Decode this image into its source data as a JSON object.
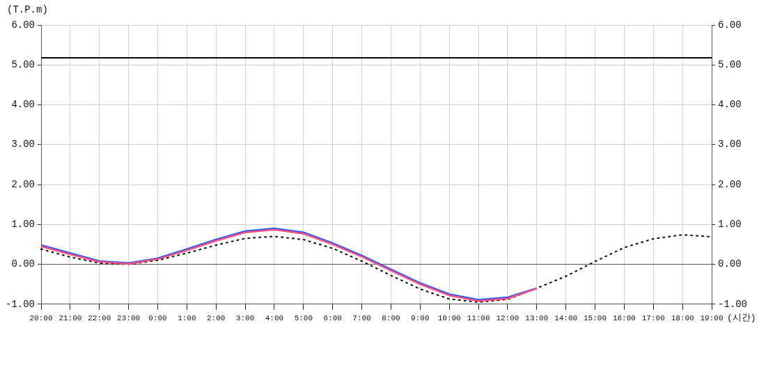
{
  "chart_data": {
    "type": "line",
    "xlabel": "(시간)",
    "ylabel": "(T.P.m)",
    "categories": [
      "20:00",
      "21:00",
      "22:00",
      "23:00",
      "0:00",
      "1:00",
      "2:00",
      "3:00",
      "4:00",
      "5:00",
      "6:00",
      "7:00",
      "8:00",
      "9:00",
      "10:00",
      "11:00",
      "12:00",
      "13:00",
      "14:00",
      "15:00",
      "16:00",
      "17:00",
      "18:00",
      "19:00"
    ],
    "series": [
      {
        "color": "#ff4f7b",
        "line_style": "solid",
        "values": [
          0.45,
          0.25,
          0.06,
          0.01,
          0.13,
          0.35,
          0.59,
          0.8,
          0.87,
          0.77,
          0.5,
          0.19,
          -0.16,
          -0.5,
          -0.78,
          -0.92,
          -0.86,
          -0.61,
          null,
          null,
          null,
          null,
          null,
          null
        ]
      },
      {
        "color": "#1f5bff",
        "line_style": "solid",
        "values": [
          0.48,
          0.28,
          0.08,
          0.03,
          0.15,
          0.38,
          0.62,
          0.83,
          0.9,
          0.8,
          0.53,
          0.22,
          -0.13,
          -0.47,
          -0.75,
          -0.89,
          -0.83,
          -0.6,
          null,
          null,
          null,
          null,
          null,
          null
        ]
      },
      {
        "color": "#000000",
        "line_style": "dotted",
        "values": [
          0.38,
          0.18,
          0.03,
          0.0,
          0.1,
          0.28,
          0.48,
          0.65,
          0.7,
          0.62,
          0.4,
          0.08,
          -0.28,
          -0.62,
          -0.87,
          -0.95,
          -0.88,
          -0.6,
          -0.3,
          0.07,
          0.42,
          0.64,
          0.74,
          0.69
        ]
      }
    ],
    "ylim": [
      -1,
      6
    ],
    "yticks": [
      {
        "value": -1,
        "label": "-1.00"
      },
      {
        "value": 0,
        "label": "0.00"
      },
      {
        "value": 1,
        "label": "1.00"
      },
      {
        "value": 2,
        "label": "2.00"
      },
      {
        "value": 3,
        "label": "3.00"
      },
      {
        "value": 4,
        "label": "4.00"
      },
      {
        "value": 5,
        "label": "5.00"
      },
      {
        "value": 6,
        "label": "6.00"
      }
    ],
    "y2lim": [
      -1,
      6
    ],
    "y2ticks": [
      {
        "value": -1,
        "label": "-1.00"
      },
      {
        "value": 0,
        "label": "0.00"
      },
      {
        "value": 1,
        "label": "1.00"
      },
      {
        "value": 2,
        "label": "2.00"
      },
      {
        "value": 3,
        "label": "3.00"
      },
      {
        "value": 4,
        "label": "4.00"
      },
      {
        "value": 5,
        "label": "5.00"
      },
      {
        "value": 6,
        "label": "6.00"
      }
    ],
    "ref_lines": [
      {
        "axis": "y",
        "value": 5.18,
        "color": "#000000"
      },
      {
        "axis": "y",
        "value": 0,
        "color": "#555555"
      }
    ],
    "grid": true,
    "legend": false,
    "marker": "none"
  }
}
